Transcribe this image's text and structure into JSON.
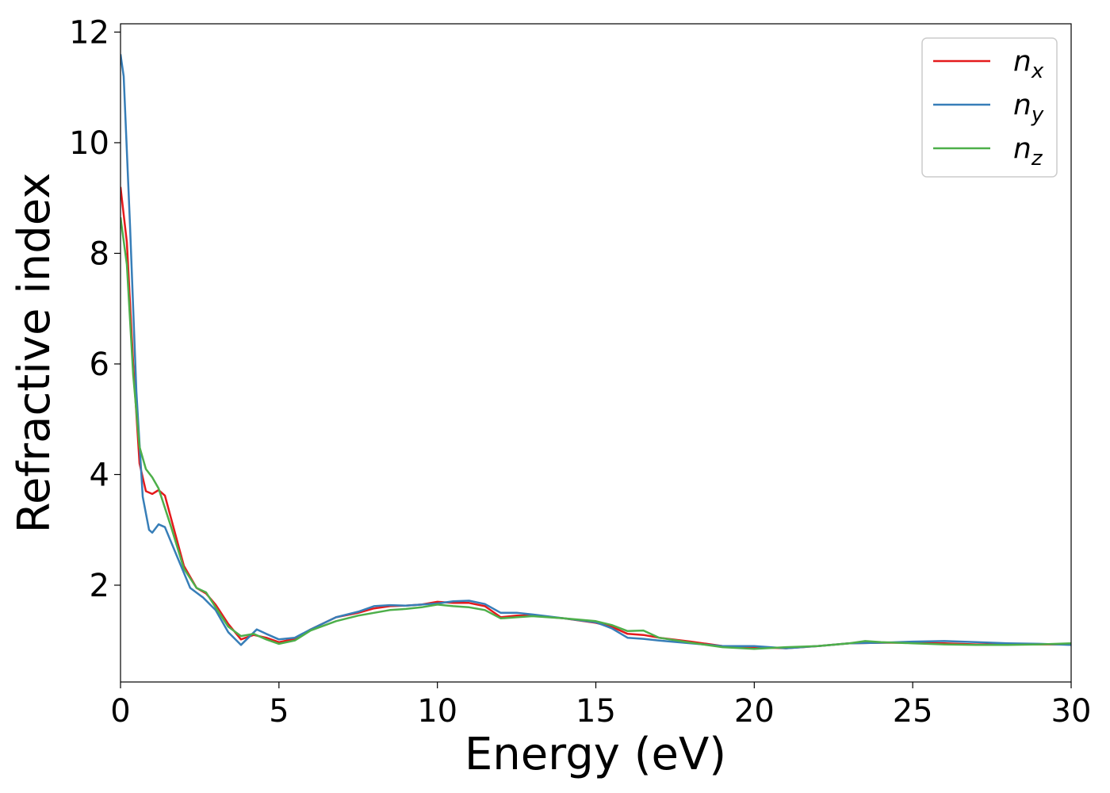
{
  "chart_data": {
    "type": "line",
    "title": "",
    "xlabel": "Energy (eV)",
    "ylabel": "Refractive index",
    "xlim": [
      0,
      30
    ],
    "ylim": [
      0.25,
      12.15
    ],
    "xticks": [
      "0",
      "5",
      "10",
      "15",
      "20",
      "25",
      "30"
    ],
    "yticks": [
      "2",
      "4",
      "6",
      "8",
      "10",
      "12"
    ],
    "grid": false,
    "legend_position": "top-right",
    "series": [
      {
        "name": "n",
        "sub": "x",
        "color": "#e41a1c",
        "points": [
          [
            0,
            9.2
          ],
          [
            0.2,
            8.2
          ],
          [
            0.4,
            6.0
          ],
          [
            0.6,
            4.2
          ],
          [
            0.8,
            3.7
          ],
          [
            1.0,
            3.65
          ],
          [
            1.2,
            3.72
          ],
          [
            1.4,
            3.62
          ],
          [
            1.6,
            3.2
          ],
          [
            2.0,
            2.35
          ],
          [
            2.4,
            1.95
          ],
          [
            2.7,
            1.85
          ],
          [
            3.0,
            1.65
          ],
          [
            3.4,
            1.3
          ],
          [
            3.8,
            1.02
          ],
          [
            4.2,
            1.1
          ],
          [
            4.6,
            1.05
          ],
          [
            5.0,
            0.97
          ],
          [
            5.5,
            1.03
          ],
          [
            6.0,
            1.2
          ],
          [
            6.8,
            1.42
          ],
          [
            7.5,
            1.5
          ],
          [
            8.0,
            1.58
          ],
          [
            8.5,
            1.62
          ],
          [
            9.0,
            1.63
          ],
          [
            9.5,
            1.65
          ],
          [
            10.0,
            1.7
          ],
          [
            10.5,
            1.68
          ],
          [
            11.0,
            1.68
          ],
          [
            11.5,
            1.62
          ],
          [
            12.0,
            1.42
          ],
          [
            12.5,
            1.45
          ],
          [
            13.0,
            1.45
          ],
          [
            14.0,
            1.4
          ],
          [
            15.0,
            1.32
          ],
          [
            15.5,
            1.25
          ],
          [
            16.0,
            1.12
          ],
          [
            16.5,
            1.1
          ],
          [
            17.0,
            1.05
          ],
          [
            18.0,
            0.98
          ],
          [
            19.0,
            0.9
          ],
          [
            20.0,
            0.88
          ],
          [
            21.0,
            0.86
          ],
          [
            22.0,
            0.9
          ],
          [
            23.0,
            0.95
          ],
          [
            24.0,
            0.96
          ],
          [
            25.0,
            0.96
          ],
          [
            26.0,
            0.95
          ],
          [
            27.0,
            0.93
          ],
          [
            28.0,
            0.93
          ],
          [
            29.0,
            0.93
          ],
          [
            30.0,
            0.93
          ]
        ]
      },
      {
        "name": "n",
        "sub": "y",
        "color": "#377eb8",
        "points": [
          [
            0,
            11.6
          ],
          [
            0.1,
            11.2
          ],
          [
            0.3,
            8.5
          ],
          [
            0.5,
            5.5
          ],
          [
            0.7,
            3.6
          ],
          [
            0.9,
            3.0
          ],
          [
            1.0,
            2.95
          ],
          [
            1.2,
            3.1
          ],
          [
            1.4,
            3.05
          ],
          [
            1.8,
            2.5
          ],
          [
            2.2,
            1.95
          ],
          [
            2.6,
            1.78
          ],
          [
            3.0,
            1.55
          ],
          [
            3.4,
            1.15
          ],
          [
            3.8,
            0.92
          ],
          [
            4.3,
            1.2
          ],
          [
            4.6,
            1.12
          ],
          [
            5.0,
            1.02
          ],
          [
            5.5,
            1.05
          ],
          [
            6.0,
            1.2
          ],
          [
            6.8,
            1.42
          ],
          [
            7.5,
            1.52
          ],
          [
            8.0,
            1.62
          ],
          [
            8.5,
            1.64
          ],
          [
            9.0,
            1.63
          ],
          [
            9.5,
            1.65
          ],
          [
            10.0,
            1.67
          ],
          [
            10.5,
            1.71
          ],
          [
            11.0,
            1.72
          ],
          [
            11.5,
            1.66
          ],
          [
            12.0,
            1.5
          ],
          [
            12.5,
            1.5
          ],
          [
            13.0,
            1.47
          ],
          [
            14.0,
            1.4
          ],
          [
            15.0,
            1.33
          ],
          [
            15.5,
            1.22
          ],
          [
            16.0,
            1.05
          ],
          [
            16.5,
            1.03
          ],
          [
            17.0,
            1.0
          ],
          [
            18.0,
            0.95
          ],
          [
            19.0,
            0.9
          ],
          [
            20.0,
            0.9
          ],
          [
            20.5,
            0.88
          ],
          [
            21.0,
            0.86
          ],
          [
            22.0,
            0.9
          ],
          [
            23.0,
            0.95
          ],
          [
            24.0,
            0.96
          ],
          [
            25.0,
            0.98
          ],
          [
            26.0,
            0.99
          ],
          [
            27.0,
            0.97
          ],
          [
            28.0,
            0.95
          ],
          [
            29.0,
            0.94
          ],
          [
            30.0,
            0.92
          ]
        ]
      },
      {
        "name": "n",
        "sub": "z",
        "color": "#4daf4a",
        "points": [
          [
            0,
            8.65
          ],
          [
            0.2,
            7.8
          ],
          [
            0.4,
            5.8
          ],
          [
            0.6,
            4.5
          ],
          [
            0.8,
            4.1
          ],
          [
            1.0,
            3.95
          ],
          [
            1.2,
            3.75
          ],
          [
            1.6,
            3.05
          ],
          [
            2.0,
            2.3
          ],
          [
            2.4,
            1.95
          ],
          [
            2.7,
            1.87
          ],
          [
            3.0,
            1.6
          ],
          [
            3.4,
            1.25
          ],
          [
            3.8,
            1.08
          ],
          [
            4.2,
            1.12
          ],
          [
            4.6,
            1.02
          ],
          [
            5.0,
            0.94
          ],
          [
            5.5,
            1.0
          ],
          [
            6.0,
            1.18
          ],
          [
            6.8,
            1.35
          ],
          [
            7.5,
            1.45
          ],
          [
            8.0,
            1.5
          ],
          [
            8.5,
            1.55
          ],
          [
            9.0,
            1.57
          ],
          [
            9.5,
            1.6
          ],
          [
            10.0,
            1.65
          ],
          [
            10.5,
            1.62
          ],
          [
            11.0,
            1.6
          ],
          [
            11.5,
            1.55
          ],
          [
            12.0,
            1.4
          ],
          [
            12.5,
            1.42
          ],
          [
            13.0,
            1.44
          ],
          [
            14.0,
            1.4
          ],
          [
            15.0,
            1.35
          ],
          [
            15.5,
            1.28
          ],
          [
            16.0,
            1.17
          ],
          [
            16.5,
            1.18
          ],
          [
            17.0,
            1.05
          ],
          [
            18.0,
            0.96
          ],
          [
            19.0,
            0.88
          ],
          [
            20.0,
            0.85
          ],
          [
            21.0,
            0.88
          ],
          [
            22.0,
            0.9
          ],
          [
            23.0,
            0.95
          ],
          [
            23.5,
            0.99
          ],
          [
            24.0,
            0.97
          ],
          [
            25.0,
            0.95
          ],
          [
            26.0,
            0.93
          ],
          [
            27.0,
            0.92
          ],
          [
            28.0,
            0.92
          ],
          [
            29.0,
            0.93
          ],
          [
            30.0,
            0.95
          ]
        ]
      }
    ]
  }
}
